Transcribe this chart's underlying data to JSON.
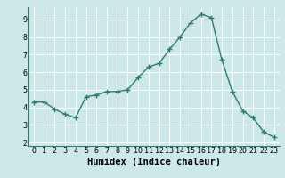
{
  "x": [
    0,
    1,
    2,
    3,
    4,
    5,
    6,
    7,
    8,
    9,
    10,
    11,
    12,
    13,
    14,
    15,
    16,
    17,
    18,
    19,
    20,
    21,
    22,
    23
  ],
  "y": [
    4.3,
    4.3,
    3.9,
    3.6,
    3.4,
    4.6,
    4.7,
    4.9,
    4.9,
    5.0,
    5.7,
    6.3,
    6.5,
    7.3,
    8.0,
    8.8,
    9.3,
    9.1,
    6.7,
    4.9,
    3.8,
    3.4,
    2.6,
    2.3
  ],
  "line_color": "#2d7d6e",
  "marker": "+",
  "marker_size": 4,
  "linewidth": 1.0,
  "markeredgewidth": 1.0,
  "xlabel": "Humidex (Indice chaleur)",
  "xlim": [
    -0.5,
    23.5
  ],
  "ylim": [
    1.8,
    9.7
  ],
  "yticks": [
    2,
    3,
    4,
    5,
    6,
    7,
    8,
    9
  ],
  "xticks": [
    0,
    1,
    2,
    3,
    4,
    5,
    6,
    7,
    8,
    9,
    10,
    11,
    12,
    13,
    14,
    15,
    16,
    17,
    18,
    19,
    20,
    21,
    22,
    23
  ],
  "bg_color": "#cce8e8",
  "grid_color": "#ffffff",
  "tick_fontsize": 6,
  "xlabel_fontsize": 7.5,
  "xlabel_fontweight": "bold"
}
